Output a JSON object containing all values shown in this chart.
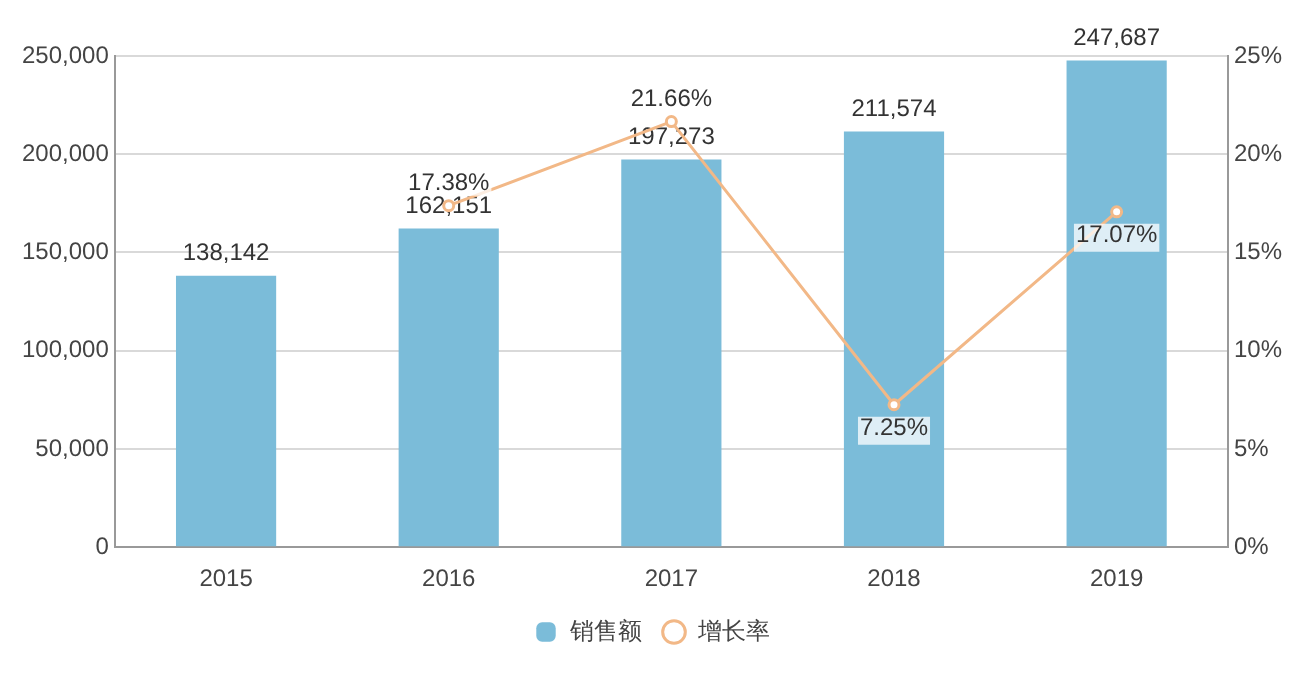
{
  "chart_data": {
    "type": "bar",
    "categories": [
      "2015",
      "2016",
      "2017",
      "2018",
      "2019"
    ],
    "series": [
      {
        "name": "销售额",
        "color": "#7bbcd9",
        "values": [
          138142,
          162151,
          197273,
          211574,
          247687
        ],
        "value_labels": [
          "138,142",
          "162,151",
          "197,273",
          "211,574",
          "247,687"
        ]
      },
      {
        "name": "增长率",
        "type": "line",
        "axis": "y2",
        "color": "#f2b887",
        "values": [
          null,
          17.38,
          21.66,
          7.25,
          17.07
        ],
        "value_labels": [
          null,
          "17.38%",
          "21.66%",
          "7.25%",
          "17.07%"
        ]
      }
    ],
    "ylim": [
      0,
      250000
    ],
    "yticks": [
      {
        "value": 0,
        "label": "0"
      },
      {
        "value": 50000,
        "label": "50,000"
      },
      {
        "value": 100000,
        "label": "100,000"
      },
      {
        "value": 150000,
        "label": "150,000"
      },
      {
        "value": 200000,
        "label": "200,000"
      },
      {
        "value": 250000,
        "label": "250,000"
      }
    ],
    "y2lim": [
      0,
      25
    ],
    "y2ticks": [
      {
        "value": 0,
        "label": "0%"
      },
      {
        "value": 5,
        "label": "5%"
      },
      {
        "value": 10,
        "label": "10%"
      },
      {
        "value": 15,
        "label": "15%"
      },
      {
        "value": 20,
        "label": "20%"
      },
      {
        "value": 25,
        "label": "25%"
      }
    ],
    "grid": "y",
    "legend": "bottom",
    "marker": "circle",
    "line_style": "solid"
  }
}
